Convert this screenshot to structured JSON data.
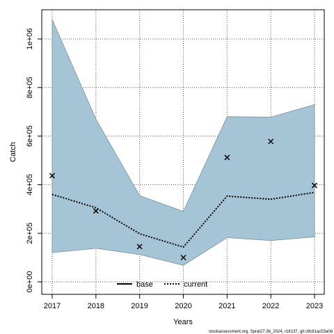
{
  "chart_data": {
    "type": "line",
    "xlabel": "Years",
    "ylabel": "Catch",
    "x": [
      2017,
      2018,
      2019,
      2020,
      2021,
      2022,
      2023
    ],
    "xlim": [
      2017,
      2023
    ],
    "ylim": [
      0,
      1100000
    ],
    "yticks": [
      0,
      200000,
      400000,
      600000,
      800000,
      1000000
    ],
    "ytick_labels": [
      "0e+00",
      "2e+05",
      "4e+05",
      "6e+05",
      "8e+05",
      "1e+06"
    ],
    "grid": true,
    "band": {
      "color": "#a5c5d6",
      "upper": [
        1080000,
        670000,
        355000,
        290000,
        680000,
        678000,
        730000
      ],
      "lower": [
        120000,
        138000,
        112000,
        68000,
        182000,
        170000,
        185000
      ]
    },
    "series": [
      {
        "name": "current",
        "style": "dotted",
        "color": "#000000",
        "values": [
          360000,
          305000,
          198000,
          143000,
          353000,
          340000,
          368000
        ]
      }
    ],
    "observed": {
      "marker": "x",
      "values": [
        437000,
        292000,
        145000,
        100000,
        512000,
        578000,
        397000
      ]
    },
    "legend": {
      "position": "bottom-center",
      "entries": [
        {
          "label": "base",
          "style": "solid"
        },
        {
          "label": "current",
          "style": "dotted"
        }
      ]
    },
    "footnote": "stockassessment.org, Sprat27.3b_2024, r18137, git:c9c81ac53a0d"
  }
}
